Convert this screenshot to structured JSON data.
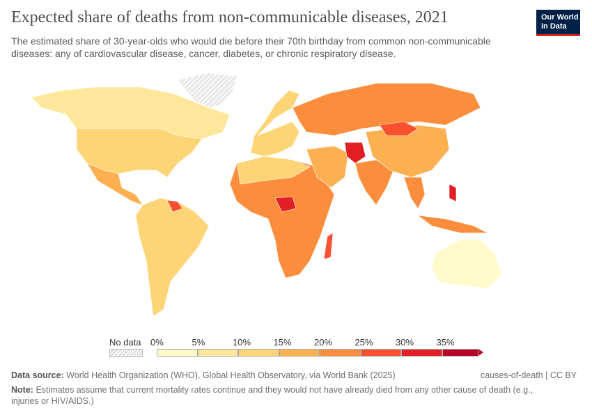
{
  "header": {
    "title": "Expected share of deaths from non-communicable diseases, 2021",
    "subtitle": "The estimated share of 30-year-olds who would die before their 70th birthday from common non-communicable diseases: any of cardiovascular disease, cancer, diabetes, or chronic respiratory disease.",
    "logo": "Our World in Data"
  },
  "legend": {
    "no_data_label": "No data",
    "bins": [
      {
        "label": "0%",
        "color": "#fefac9"
      },
      {
        "label": "5%",
        "color": "#fee79b"
      },
      {
        "label": "10%",
        "color": "#fed576"
      },
      {
        "label": "15%",
        "color": "#fdb051"
      },
      {
        "label": "20%",
        "color": "#fc8d3c"
      },
      {
        "label": "25%",
        "color": "#f9502f"
      },
      {
        "label": "30%",
        "color": "#e31f26"
      },
      {
        "label": "35%",
        "color": "#b40326"
      }
    ]
  },
  "footer": {
    "source_label": "Data source:",
    "source": "World Health Organization (WHO), Global Health Observatory, via World Bank (2025)",
    "slug": "causes-of-death | CC BY",
    "note_label": "Note:",
    "note": "Estimates assume that current mortality rates continue and they would not have already died from any other cause of death (e.g., injuries or HIV/AIDS.)"
  },
  "map": {
    "regions": [
      {
        "name": "Canada",
        "color": "#fee79b"
      },
      {
        "name": "United States",
        "color": "#fed576"
      },
      {
        "name": "Greenland",
        "color": "no-data"
      },
      {
        "name": "Mexico & Central America",
        "color": "#fdb051"
      },
      {
        "name": "South America",
        "color": "#fed576"
      },
      {
        "name": "Europe",
        "color": "#fed576"
      },
      {
        "name": "Russia",
        "color": "#fc8d3c"
      },
      {
        "name": "Africa",
        "color": "#fc8d3c"
      },
      {
        "name": "Middle East",
        "color": "#fdb051"
      },
      {
        "name": "South Asia",
        "color": "#fc8d3c"
      },
      {
        "name": "China",
        "color": "#fdb051"
      },
      {
        "name": "Mongolia",
        "color": "#f9502f"
      },
      {
        "name": "Southeast Asia",
        "color": "#fc8d3c"
      },
      {
        "name": "Australia",
        "color": "#fefac9"
      }
    ]
  }
}
